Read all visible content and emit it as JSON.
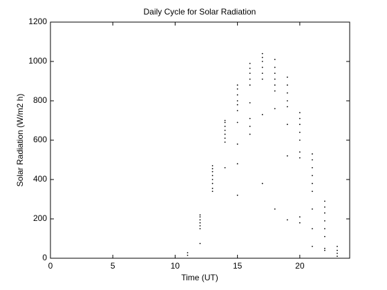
{
  "chart_data": {
    "type": "scatter",
    "title": "Daily Cycle for Solar Radiation",
    "xlabel": "Time (UT)",
    "ylabel": "Solar Radiation (W/m2 h)",
    "xlim": [
      0,
      24
    ],
    "ylim": [
      0,
      1200
    ],
    "xticks": [
      0,
      5,
      10,
      15,
      20
    ],
    "yticks": [
      0,
      200,
      400,
      600,
      800,
      1000,
      1200
    ],
    "series": [
      {
        "color": "#000000",
        "x": [
          11,
          11,
          12,
          12,
          12,
          12,
          12,
          12,
          12,
          13,
          13,
          13,
          13,
          13,
          13,
          13,
          13,
          14,
          14,
          14,
          14,
          14,
          14,
          14,
          14,
          15,
          15,
          15,
          15,
          15,
          15,
          15,
          15,
          15,
          15,
          16,
          16,
          16,
          16,
          16,
          16,
          16,
          16,
          16,
          17,
          17,
          17,
          17,
          17,
          17,
          17,
          17,
          18,
          18,
          18,
          18,
          18,
          18,
          18,
          18,
          19,
          19,
          19,
          19,
          19,
          19,
          19,
          19,
          20,
          20,
          20,
          20,
          20,
          20,
          20,
          20,
          20,
          21,
          21,
          21,
          21,
          21,
          21,
          21,
          21,
          21,
          22,
          22,
          22,
          22,
          22,
          22,
          22,
          22,
          23,
          23,
          23,
          23
        ],
        "values": [
          15,
          28,
          75,
          150,
          165,
          180,
          195,
          210,
          220,
          340,
          355,
          380,
          400,
          420,
          440,
          455,
          470,
          460,
          590,
          610,
          630,
          650,
          670,
          690,
          700,
          320,
          480,
          580,
          690,
          750,
          780,
          800,
          830,
          860,
          880,
          630,
          670,
          710,
          790,
          880,
          910,
          940,
          965,
          990,
          380,
          730,
          910,
          940,
          970,
          1000,
          1020,
          1040,
          250,
          760,
          850,
          880,
          910,
          940,
          970,
          1010,
          195,
          520,
          680,
          770,
          800,
          840,
          880,
          920,
          180,
          210,
          510,
          540,
          600,
          640,
          680,
          710,
          740,
          60,
          150,
          250,
          340,
          380,
          420,
          460,
          500,
          530,
          40,
          50,
          110,
          150,
          190,
          230,
          260,
          290,
          10,
          25,
          40,
          60
        ]
      }
    ]
  }
}
